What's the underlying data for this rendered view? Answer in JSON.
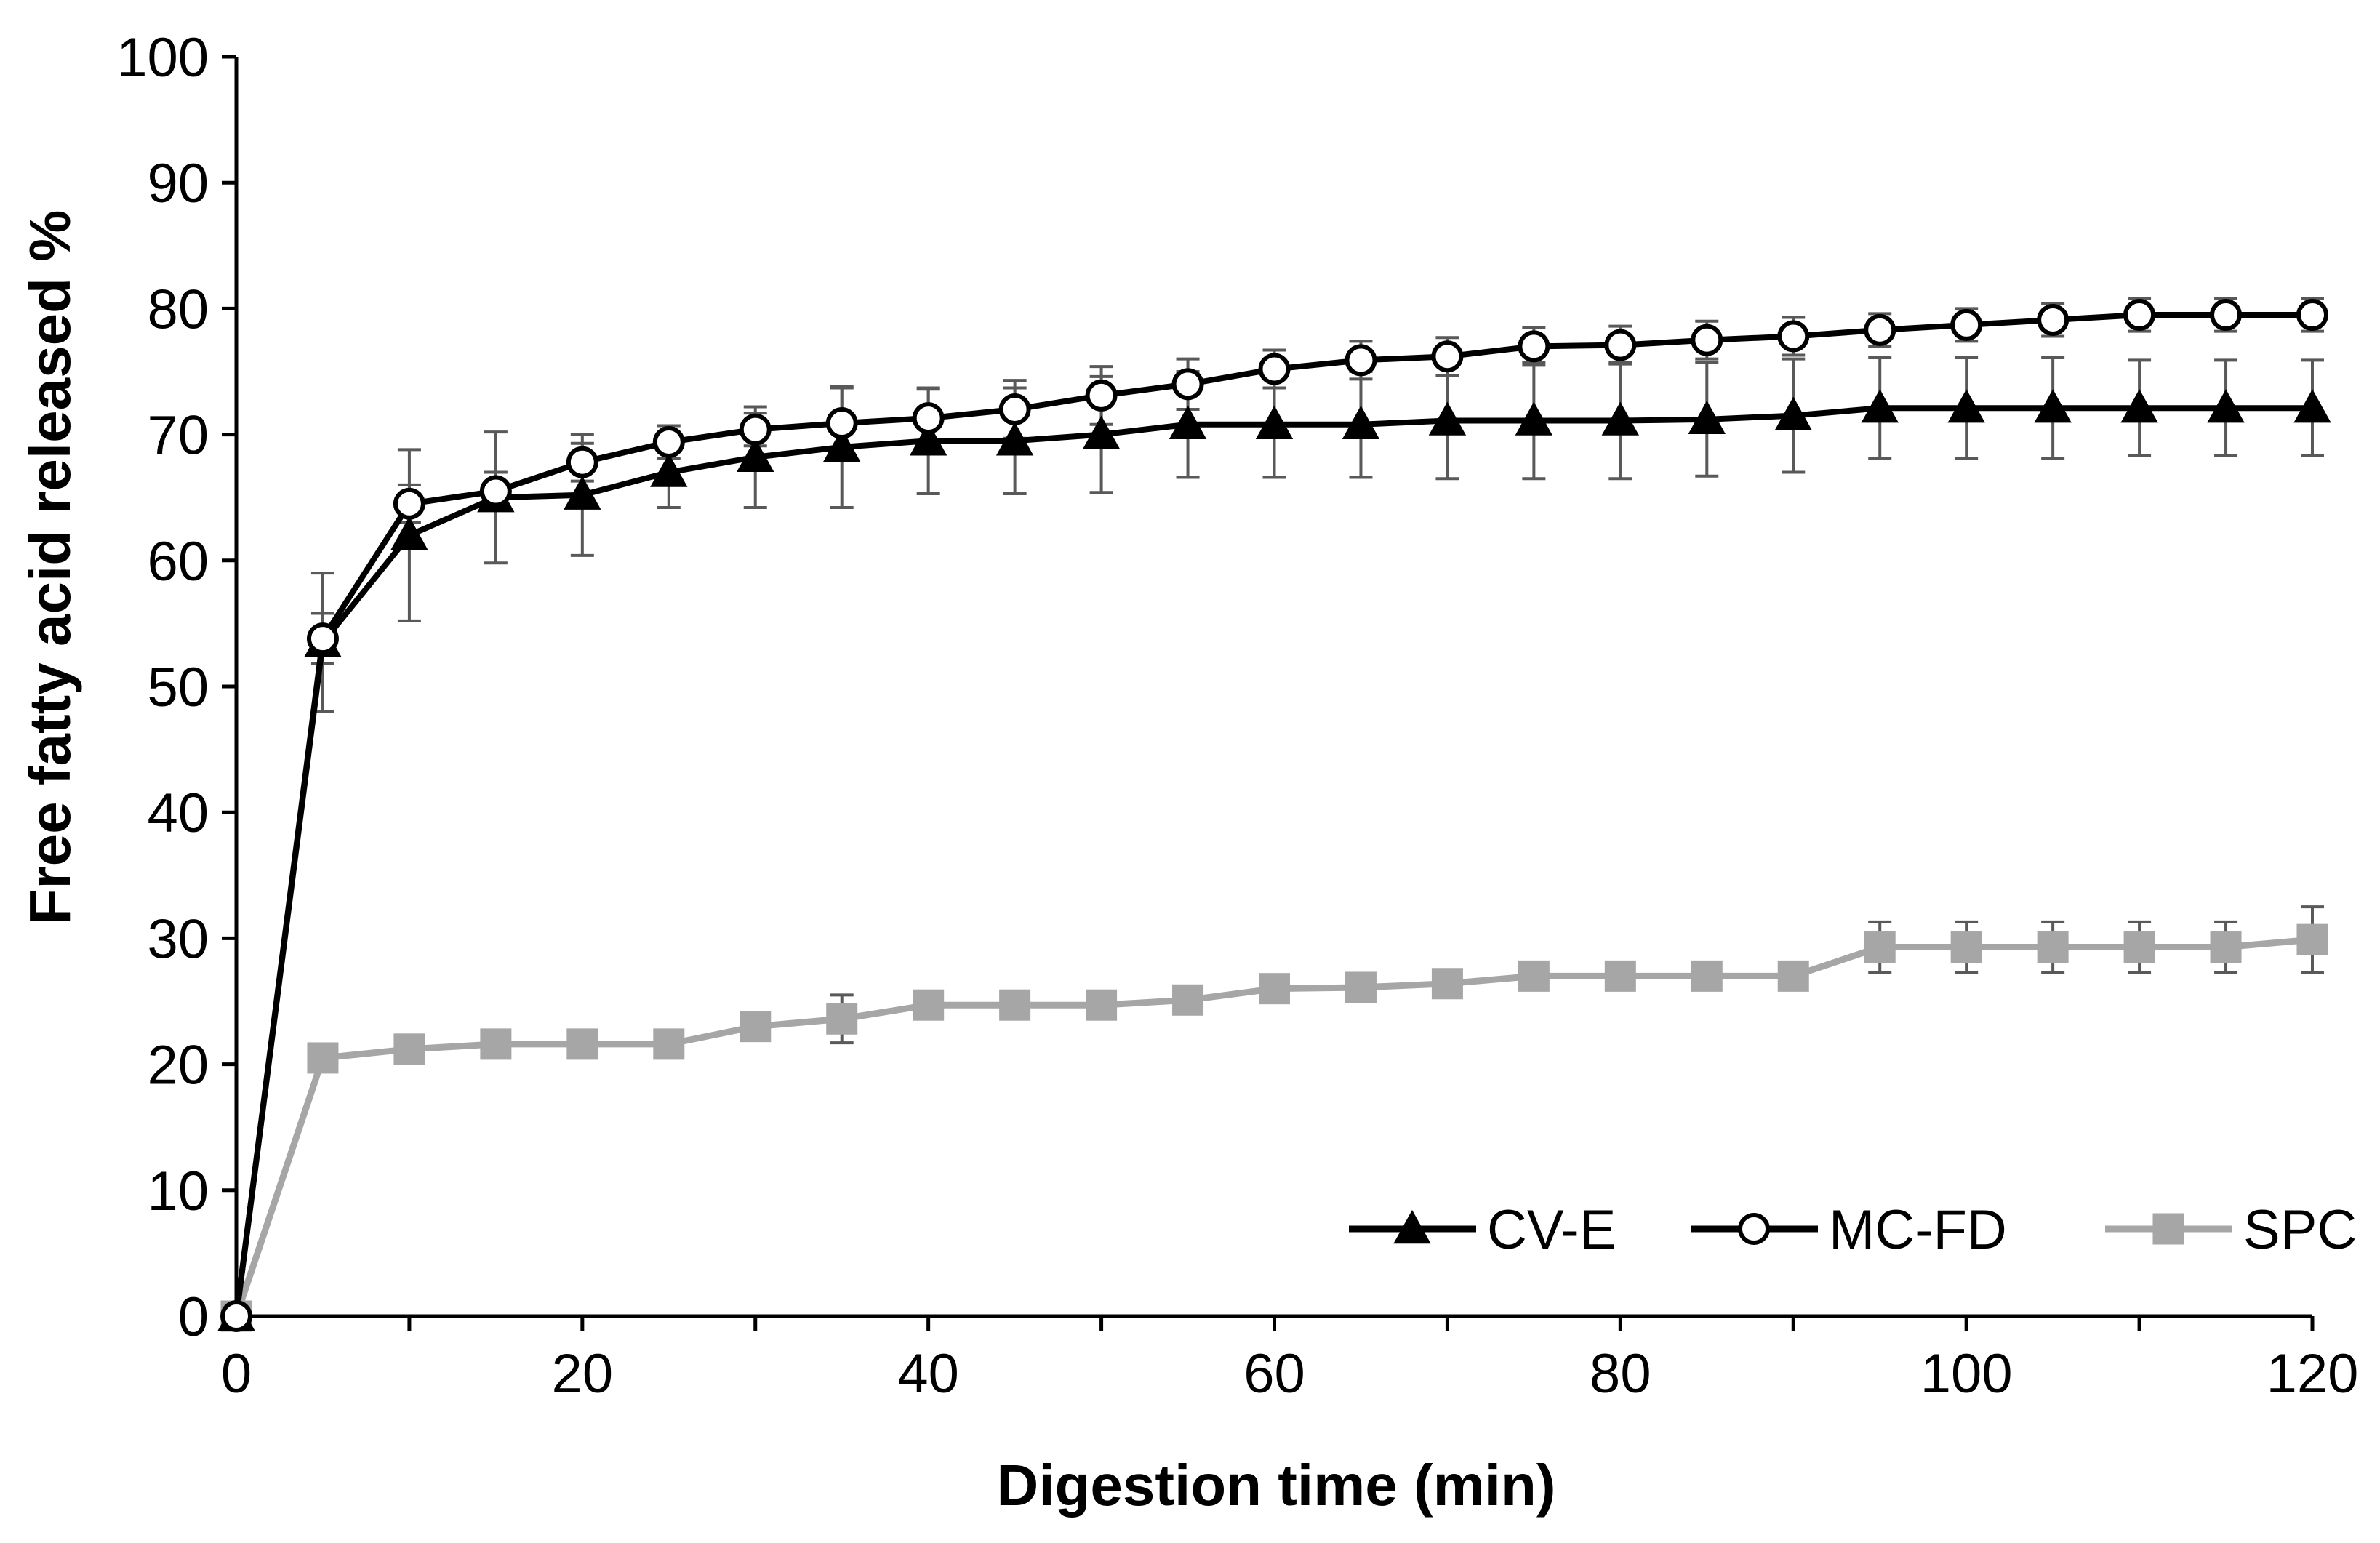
{
  "chart_data": {
    "type": "line",
    "title": "",
    "xlabel": "Digestion time (min)",
    "ylabel": "Free fatty acid released %",
    "xlim": [
      0,
      120
    ],
    "ylim": [
      0,
      100
    ],
    "xticks": [
      "0",
      "20",
      "40",
      "60",
      "80",
      "100",
      "120"
    ],
    "yticks": [
      "0",
      "10",
      "20",
      "30",
      "40",
      "50",
      "60",
      "70",
      "80",
      "90",
      "100"
    ],
    "legend_position": "bottom-right",
    "x": [
      0,
      5,
      10,
      15,
      20,
      25,
      30,
      35,
      40,
      45,
      50,
      55,
      60,
      65,
      70,
      75,
      80,
      85,
      90,
      95,
      100,
      105,
      110,
      115,
      120
    ],
    "series": [
      {
        "name": "CV-E",
        "color": "#000000",
        "marker": "triangle",
        "values": [
          0,
          53.5,
          62,
          65,
          65.2,
          67,
          68.2,
          69,
          69.5,
          69.5,
          70,
          70.8,
          70.8,
          70.8,
          71.1,
          71.1,
          71.1,
          71.2,
          71.5,
          72.1,
          72.1,
          72.1,
          72.1,
          72.1,
          72.1
        ],
        "errors": [
          0,
          5.5,
          6.8,
          5.2,
          4.8,
          2.8,
          4.0,
          4.8,
          4.2,
          4.2,
          4.6,
          4.2,
          4.2,
          4.2,
          4.6,
          4.6,
          4.6,
          4.5,
          4.5,
          4.0,
          4.0,
          4.0,
          3.8,
          3.8,
          3.8
        ]
      },
      {
        "name": "MC-FD",
        "color": "#000000",
        "marker": "circle",
        "values": [
          0,
          53.8,
          64.5,
          65.5,
          67.8,
          69.4,
          70.4,
          70.9,
          71.3,
          72,
          73.1,
          74,
          75.2,
          75.9,
          76.2,
          77,
          77.1,
          77.5,
          77.8,
          78.3,
          78.7,
          79.1,
          79.5,
          79.5,
          79.5
        ],
        "errors": [
          0,
          2.0,
          1.5,
          1.5,
          1.5,
          1.3,
          1.3,
          2.8,
          2.3,
          2.3,
          2.3,
          2.0,
          1.5,
          1.5,
          1.5,
          1.5,
          1.5,
          1.5,
          1.5,
          1.3,
          1.3,
          1.3,
          1.3,
          1.3,
          1.3
        ]
      },
      {
        "name": "SPC",
        "color": "#a6a6a6",
        "marker": "square",
        "values": [
          0,
          20.5,
          21.2,
          21.6,
          21.6,
          21.6,
          23,
          23.6,
          24.7,
          24.7,
          24.7,
          25.1,
          26,
          26.1,
          26.4,
          27,
          27,
          27,
          27,
          29.3,
          29.3,
          29.3,
          29.3,
          29.3,
          29.9
        ],
        "errors": [
          0,
          0.6,
          0.6,
          0.6,
          0.6,
          0.6,
          1.0,
          1.9,
          0.6,
          0.6,
          0.6,
          0.6,
          0.6,
          0.6,
          0.6,
          0.6,
          0.6,
          0.6,
          0.6,
          2.0,
          2.0,
          2.0,
          2.0,
          2.0,
          2.6
        ]
      }
    ]
  }
}
